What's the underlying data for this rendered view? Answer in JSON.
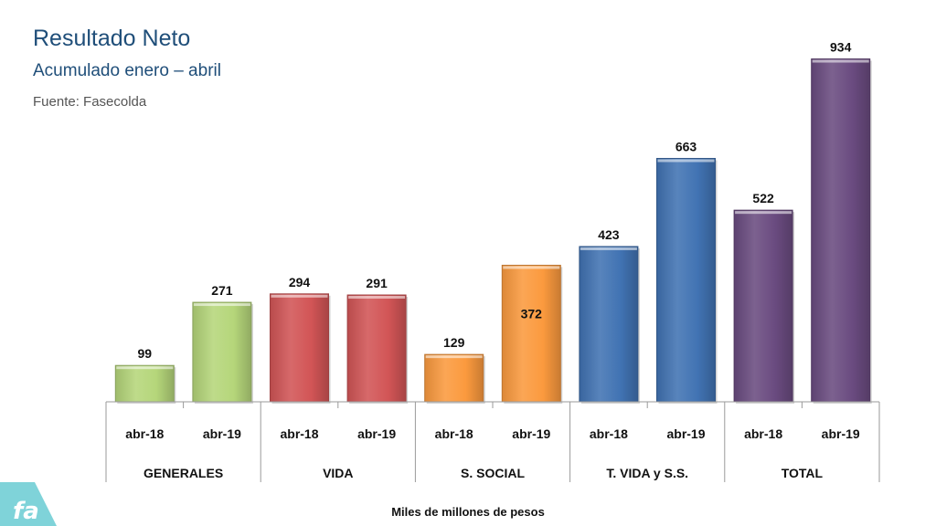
{
  "header": {
    "title": "Resultado Neto",
    "subtitle": "Acumulado enero – abril",
    "source": "Fuente: Fasecolda"
  },
  "footer": {
    "units_label": "Miles de millones de pesos"
  },
  "logo": {
    "icon": "fasecolda-logo-icon",
    "text": "fa",
    "color": "#7fd3d9"
  },
  "chart_data": {
    "type": "bar",
    "title": "Resultado Neto",
    "subtitle": "Acumulado enero – abril",
    "xlabel": "",
    "ylabel": "",
    "units": "Miles de millones de pesos",
    "ylim": [
      0,
      1000
    ],
    "grid": false,
    "legend": "none",
    "groups": [
      {
        "name": "GENERALES",
        "color": "#b5d67a",
        "bars": [
          {
            "label": "abr-18",
            "value": 99
          },
          {
            "label": "abr-19",
            "value": 271
          }
        ]
      },
      {
        "name": "VIDA",
        "color": "#d25556",
        "bars": [
          {
            "label": "abr-18",
            "value": 294
          },
          {
            "label": "abr-19",
            "value": 291
          }
        ]
      },
      {
        "name": "S. SOCIAL",
        "color": "#fb9a3e",
        "bars": [
          {
            "label": "abr-18",
            "value": 129
          },
          {
            "label": "abr-19",
            "value": 372
          }
        ]
      },
      {
        "name": "T. VIDA y S.S.",
        "color": "#4173b3",
        "bars": [
          {
            "label": "abr-18",
            "value": 423
          },
          {
            "label": "abr-19",
            "value": 663
          }
        ]
      },
      {
        "name": "TOTAL",
        "color": "#6a4b80",
        "bars": [
          {
            "label": "abr-18",
            "value": 522
          },
          {
            "label": "abr-19",
            "value": 934
          }
        ]
      }
    ]
  }
}
